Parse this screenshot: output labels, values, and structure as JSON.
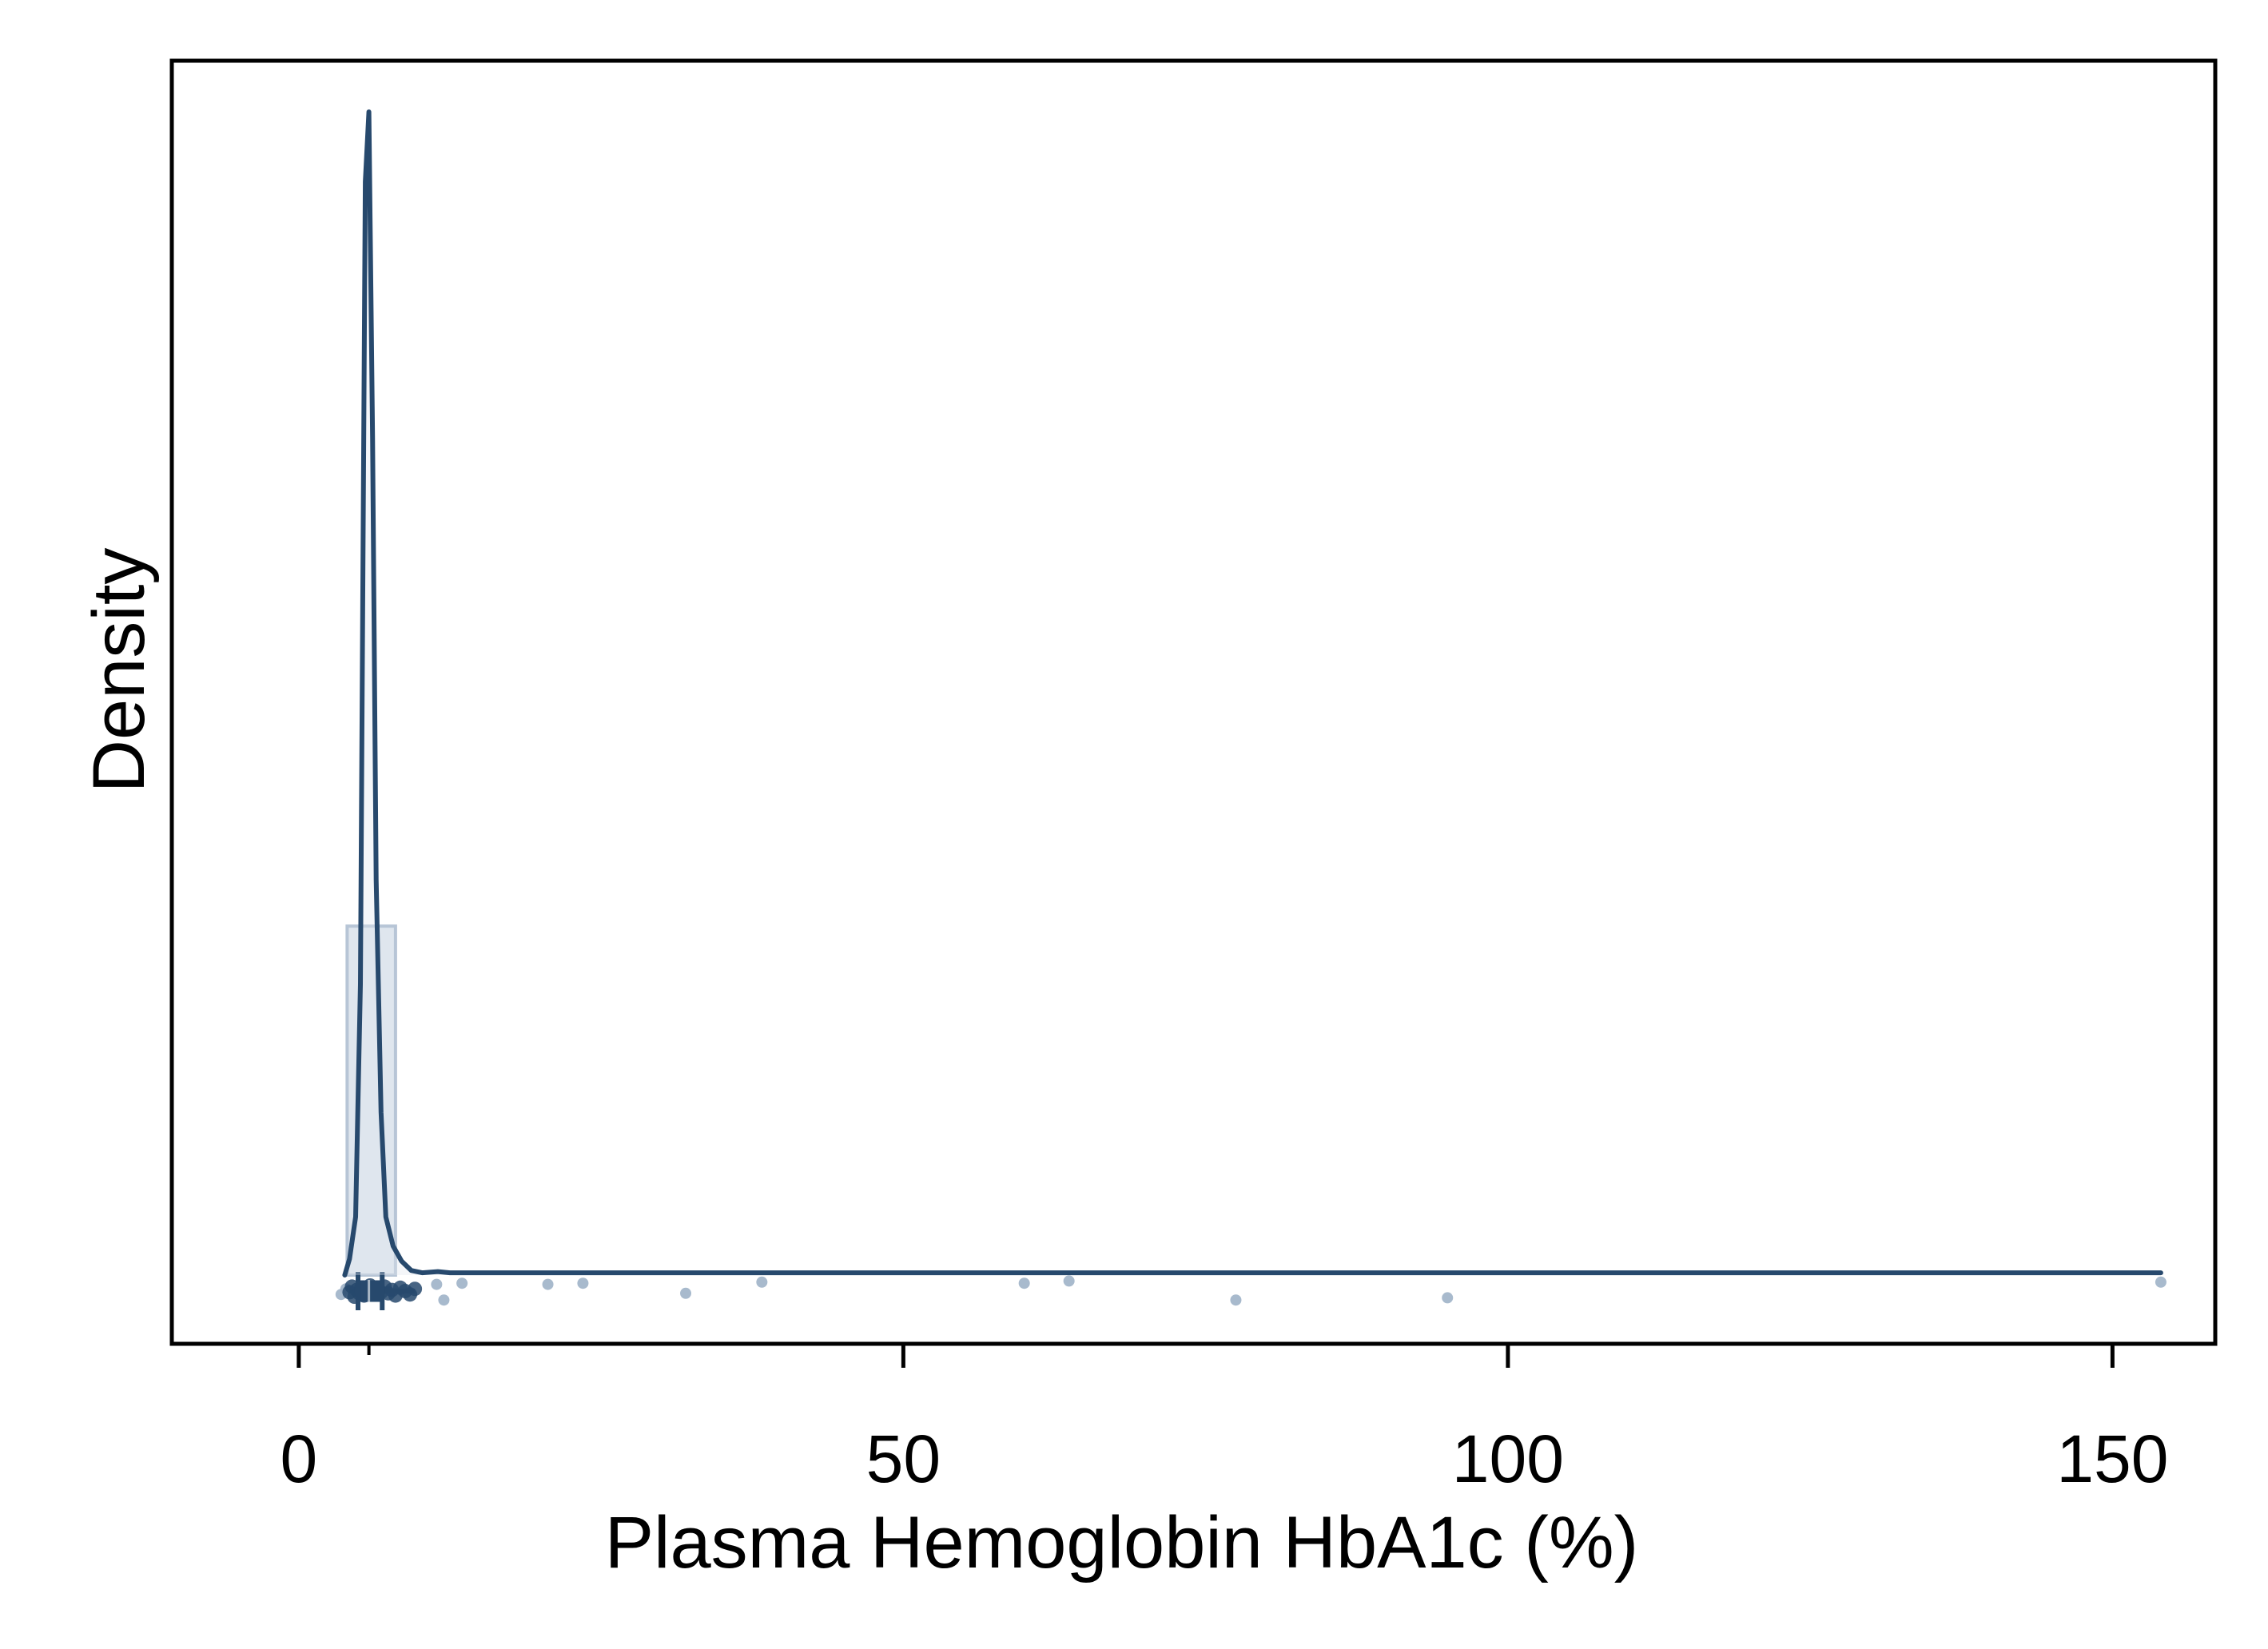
{
  "chart_data": {
    "type": "histogram-density",
    "title": "",
    "xlabel": "Plasma Hemoglobin HbA1c (%)",
    "ylabel": "Density",
    "xlim": [
      -10.5,
      158.5
    ],
    "x_ticks": [
      0,
      50,
      100,
      150
    ],
    "x_tick_labels": [
      "0",
      "50",
      "100",
      "150"
    ],
    "y_ticks_shown": false,
    "grid": false,
    "legend": "none",
    "colors": {
      "line": "#27496d",
      "bar_fill": "#dfe6ee",
      "bar_edge": "#b7c5d6",
      "points": "#9fb3c8",
      "points_dark": "#27496d"
    },
    "histogram": {
      "bins": [
        {
          "x0": 4,
          "x1": 8,
          "density": 0.3
        }
      ]
    },
    "density_curve": {
      "x": [
        3.8,
        4.2,
        4.7,
        5.1,
        5.5,
        5.8,
        6.1,
        6.4,
        6.8,
        7.2,
        7.8,
        8.5,
        9.3,
        10.2,
        11.5,
        12.5,
        14,
        20,
        30,
        40,
        60,
        80,
        100,
        120,
        140,
        154
      ],
      "density": [
        0,
        0.014,
        0.05,
        0.25,
        0.94,
        1.0,
        0.72,
        0.34,
        0.14,
        0.05,
        0.025,
        0.012,
        0.004,
        0.002,
        0.003,
        0.002,
        0.002,
        0.002,
        0.002,
        0.002,
        0.002,
        0.002,
        0.002,
        0.002,
        0.002,
        0.002
      ]
    },
    "boxplot": {
      "whisker_low": 4.6,
      "q1": 4.9,
      "median": 5.8,
      "q3": 6.9,
      "whisker_high": 9.6
    },
    "points": [
      {
        "x": 3.5,
        "jitter": 0.3
      },
      {
        "x": 3.9,
        "jitter": -0.2
      },
      {
        "x": 4.2,
        "jitter": 0.1
      },
      {
        "x": 4.4,
        "jitter": -0.4
      },
      {
        "x": 4.6,
        "jitter": 0.5
      },
      {
        "x": 4.8,
        "jitter": -0.1
      },
      {
        "x": 5.0,
        "jitter": 0.2
      },
      {
        "x": 5.2,
        "jitter": -0.3
      },
      {
        "x": 5.4,
        "jitter": 0.4
      },
      {
        "x": 5.6,
        "jitter": 0.0
      },
      {
        "x": 5.9,
        "jitter": -0.5
      },
      {
        "x": 6.2,
        "jitter": 0.3
      },
      {
        "x": 6.5,
        "jitter": -0.2
      },
      {
        "x": 6.8,
        "jitter": 0.1
      },
      {
        "x": 7.1,
        "jitter": -0.4
      },
      {
        "x": 7.4,
        "jitter": 0.2
      },
      {
        "x": 7.7,
        "jitter": -0.1
      },
      {
        "x": 8.0,
        "jitter": 0.4
      },
      {
        "x": 8.4,
        "jitter": -0.3
      },
      {
        "x": 8.8,
        "jitter": 0.0
      },
      {
        "x": 9.2,
        "jitter": 0.3
      },
      {
        "x": 9.6,
        "jitter": -0.2
      },
      {
        "x": 11.4,
        "jitter": -0.6
      },
      {
        "x": 12.0,
        "jitter": 0.8
      },
      {
        "x": 13.5,
        "jitter": -0.7
      },
      {
        "x": 20.6,
        "jitter": -0.6
      },
      {
        "x": 23.5,
        "jitter": -0.7
      },
      {
        "x": 32.0,
        "jitter": 0.2
      },
      {
        "x": 38.3,
        "jitter": -0.8
      },
      {
        "x": 60.0,
        "jitter": -0.7
      },
      {
        "x": 63.7,
        "jitter": -0.9
      },
      {
        "x": 77.5,
        "jitter": 0.8
      },
      {
        "x": 95.0,
        "jitter": 0.6
      },
      {
        "x": 154.0,
        "jitter": -0.8
      }
    ]
  }
}
